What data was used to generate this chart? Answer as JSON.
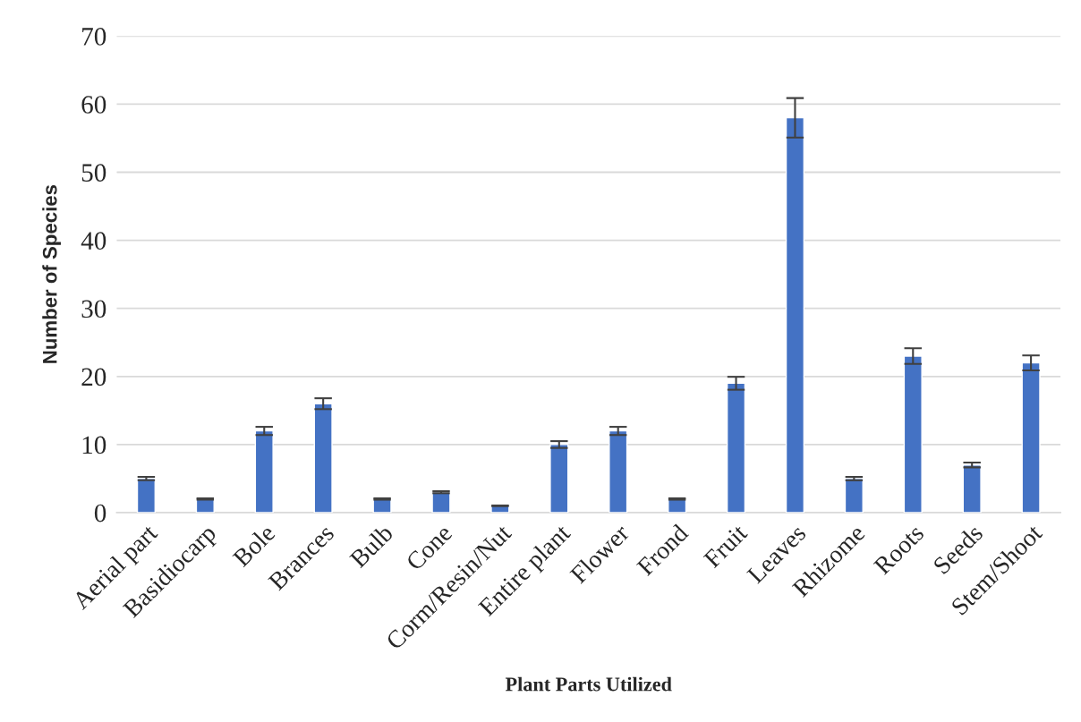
{
  "chart_data": {
    "type": "bar",
    "xlabel": "Plant Parts Utilized",
    "ylabel": "Number of Species",
    "categories": [
      "Aerial part",
      "Basidiocarp",
      "Bole",
      "Brances",
      "Bulb",
      "Cone",
      "Corm/Resin/Nut",
      "Entire plant",
      "Flower",
      "Frond",
      "Fruit",
      "Leaves",
      "Rhizome",
      "Roots",
      "Seeds",
      "Stem/Shoot"
    ],
    "values": [
      5,
      2,
      12,
      16,
      2,
      3,
      1,
      10,
      12,
      2,
      19,
      58,
      5,
      23,
      7,
      22
    ],
    "errors": [
      0.25,
      0.1,
      0.6,
      0.8,
      0.1,
      0.15,
      0.05,
      0.5,
      0.6,
      0.1,
      0.95,
      2.9,
      0.25,
      1.15,
      0.35,
      1.1
    ],
    "color": "#4472c4",
    "ylim": [
      0,
      70
    ],
    "yticks": [
      0,
      10,
      20,
      30,
      40,
      50,
      60,
      70
    ],
    "grid": "y"
  }
}
